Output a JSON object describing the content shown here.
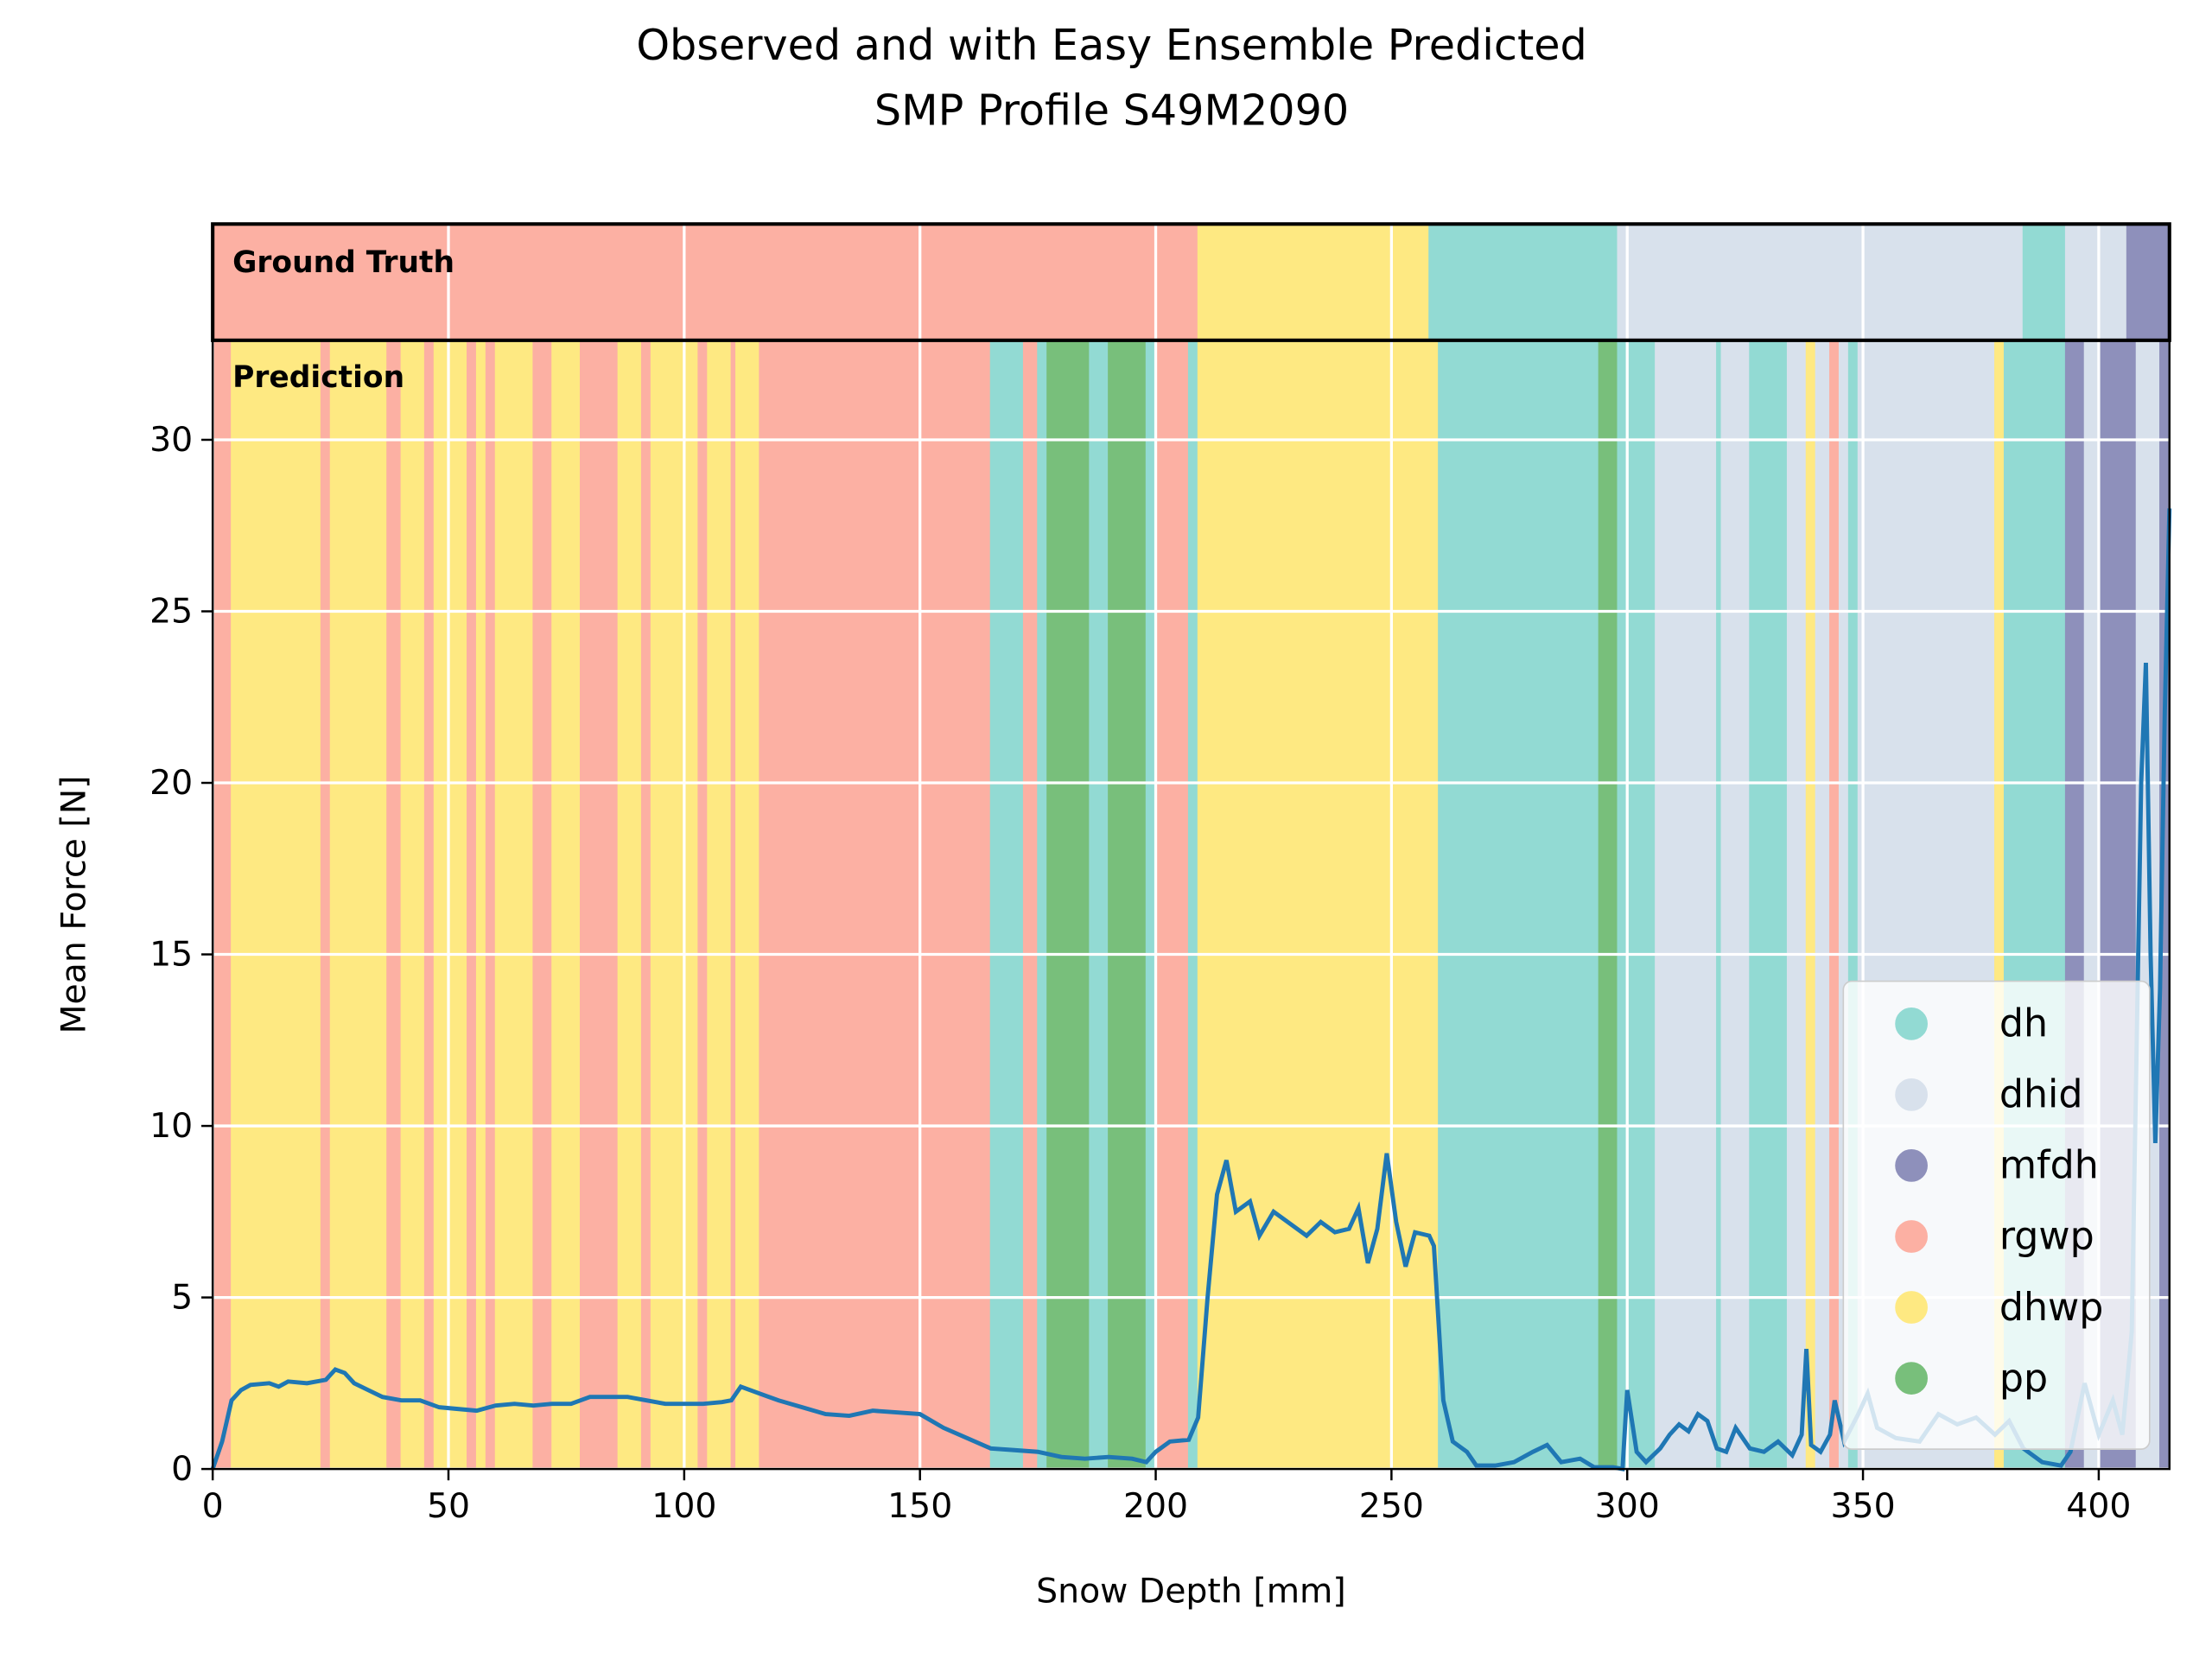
{
  "chart_data": {
    "type": "line",
    "title": [
      "Observed and with Easy Ensemble Predicted",
      "SMP Profile S49M2090"
    ],
    "x_label": "Snow Depth [mm]",
    "y_label": "Mean Force [N]",
    "annotations": [
      "Ground Truth",
      "Prediction"
    ],
    "xlim": [
      0,
      415
    ],
    "ylim": [
      0,
      32.9
    ],
    "xticks": [
      0,
      50,
      100,
      150,
      200,
      250,
      300,
      350,
      400
    ],
    "yticks": [
      0,
      5,
      10,
      15,
      20,
      25,
      30
    ],
    "grid": true,
    "legend": "lower right",
    "line_color": "#1f77b4",
    "classes": [
      {
        "name": "dh",
        "color": "#92dad3"
      },
      {
        "name": "dhid",
        "color": "#d8e1ec"
      },
      {
        "name": "mfdh",
        "color": "#8e90bb"
      },
      {
        "name": "rgwp",
        "color": "#fcb0a3"
      },
      {
        "name": "dhwp",
        "color": "#fee982"
      },
      {
        "name": "pp",
        "color": "#78bf7b"
      }
    ],
    "ground_truth": [
      {
        "start": 0,
        "end": 209,
        "class": "rgwp"
      },
      {
        "start": 209,
        "end": 258,
        "class": "dhwp"
      },
      {
        "start": 258,
        "end": 298,
        "class": "dh"
      },
      {
        "start": 298,
        "end": 384,
        "class": "dhid"
      },
      {
        "start": 384,
        "end": 393,
        "class": "dh"
      },
      {
        "start": 393,
        "end": 406,
        "class": "dhid"
      },
      {
        "start": 406,
        "end": 415,
        "class": "mfdh"
      }
    ],
    "prediction": [
      {
        "start": 0,
        "end": 4,
        "class": "rgwp"
      },
      {
        "start": 4,
        "end": 23,
        "class": "dhwp"
      },
      {
        "start": 23,
        "end": 25,
        "class": "rgwp"
      },
      {
        "start": 25,
        "end": 37,
        "class": "dhwp"
      },
      {
        "start": 37,
        "end": 40,
        "class": "rgwp"
      },
      {
        "start": 40,
        "end": 45,
        "class": "dhwp"
      },
      {
        "start": 45,
        "end": 47,
        "class": "rgwp"
      },
      {
        "start": 47,
        "end": 54,
        "class": "dhwp"
      },
      {
        "start": 54,
        "end": 56,
        "class": "rgwp"
      },
      {
        "start": 56,
        "end": 58,
        "class": "dhwp"
      },
      {
        "start": 58,
        "end": 60,
        "class": "rgwp"
      },
      {
        "start": 60,
        "end": 68,
        "class": "dhwp"
      },
      {
        "start": 68,
        "end": 72,
        "class": "rgwp"
      },
      {
        "start": 72,
        "end": 78,
        "class": "dhwp"
      },
      {
        "start": 78,
        "end": 86,
        "class": "rgwp"
      },
      {
        "start": 86,
        "end": 91,
        "class": "dhwp"
      },
      {
        "start": 91,
        "end": 93,
        "class": "rgwp"
      },
      {
        "start": 93,
        "end": 103,
        "class": "dhwp"
      },
      {
        "start": 103,
        "end": 105,
        "class": "rgwp"
      },
      {
        "start": 105,
        "end": 110,
        "class": "dhwp"
      },
      {
        "start": 110,
        "end": 111,
        "class": "rgwp"
      },
      {
        "start": 111,
        "end": 116,
        "class": "dhwp"
      },
      {
        "start": 116,
        "end": 165,
        "class": "rgwp"
      },
      {
        "start": 165,
        "end": 172,
        "class": "dh"
      },
      {
        "start": 172,
        "end": 175,
        "class": "rgwp"
      },
      {
        "start": 175,
        "end": 177,
        "class": "dh"
      },
      {
        "start": 177,
        "end": 186,
        "class": "pp"
      },
      {
        "start": 186,
        "end": 190,
        "class": "dh"
      },
      {
        "start": 190,
        "end": 198,
        "class": "pp"
      },
      {
        "start": 198,
        "end": 200,
        "class": "dh"
      },
      {
        "start": 200,
        "end": 207,
        "class": "rgwp"
      },
      {
        "start": 207,
        "end": 209,
        "class": "dh"
      },
      {
        "start": 209,
        "end": 260,
        "class": "dhwp"
      },
      {
        "start": 260,
        "end": 294,
        "class": "dh"
      },
      {
        "start": 294,
        "end": 298,
        "class": "pp"
      },
      {
        "start": 298,
        "end": 306,
        "class": "dh"
      },
      {
        "start": 306,
        "end": 319,
        "class": "dhid"
      },
      {
        "start": 319,
        "end": 320,
        "class": "dh"
      },
      {
        "start": 320,
        "end": 326,
        "class": "dhid"
      },
      {
        "start": 326,
        "end": 334,
        "class": "dh"
      },
      {
        "start": 334,
        "end": 338,
        "class": "dhid"
      },
      {
        "start": 338,
        "end": 340,
        "class": "dhwp"
      },
      {
        "start": 340,
        "end": 343,
        "class": "dhid"
      },
      {
        "start": 343,
        "end": 345,
        "class": "rgwp"
      },
      {
        "start": 345,
        "end": 347,
        "class": "dhid"
      },
      {
        "start": 347,
        "end": 349,
        "class": "dh"
      },
      {
        "start": 349,
        "end": 378,
        "class": "dhid"
      },
      {
        "start": 378,
        "end": 380,
        "class": "dhwp"
      },
      {
        "start": 380,
        "end": 393,
        "class": "dh"
      },
      {
        "start": 393,
        "end": 397,
        "class": "mfdh"
      },
      {
        "start": 397,
        "end": 400,
        "class": "dhid"
      },
      {
        "start": 400,
        "end": 408,
        "class": "mfdh"
      },
      {
        "start": 408,
        "end": 413,
        "class": "dhid"
      },
      {
        "start": 413,
        "end": 415,
        "class": "mfdh"
      }
    ],
    "x": [
      0,
      2,
      4,
      6,
      8,
      12,
      14,
      16,
      20,
      24,
      26,
      28,
      30,
      33,
      36,
      40,
      44,
      48,
      52,
      56,
      60,
      64,
      68,
      72,
      76,
      80,
      84,
      88,
      92,
      96,
      100,
      104,
      108,
      110,
      112,
      116,
      120,
      125,
      130,
      135,
      140,
      145,
      150,
      155,
      160,
      165,
      170,
      175,
      180,
      185,
      190,
      195,
      198,
      200,
      203,
      207,
      209,
      211,
      213,
      215,
      217,
      220,
      222,
      225,
      228,
      232,
      235,
      238,
      241,
      243,
      245,
      247,
      249,
      251,
      253,
      255,
      258,
      259,
      261,
      263,
      266,
      268,
      272,
      276,
      280,
      283,
      286,
      290,
      293,
      297,
      299,
      300,
      302,
      304,
      307,
      309,
      311,
      313,
      315,
      317,
      319,
      321,
      323,
      326,
      329,
      332,
      335,
      337,
      338,
      339,
      341,
      343,
      344,
      346,
      349,
      351,
      353,
      357,
      362,
      366,
      370,
      374,
      378,
      381,
      384,
      388,
      392,
      394,
      397,
      400,
      403,
      405,
      407,
      409,
      410,
      411,
      412,
      413,
      414,
      415
    ],
    "values": [
      0,
      0.8,
      2.0,
      2.3,
      2.45,
      2.5,
      2.4,
      2.55,
      2.5,
      2.6,
      2.9,
      2.8,
      2.5,
      2.3,
      2.1,
      2.0,
      2.0,
      1.8,
      1.75,
      1.7,
      1.85,
      1.9,
      1.85,
      1.9,
      1.9,
      2.1,
      2.1,
      2.1,
      2.0,
      1.9,
      1.9,
      1.9,
      1.95,
      2.0,
      2.4,
      2.2,
      2.0,
      1.8,
      1.6,
      1.55,
      1.7,
      1.65,
      1.6,
      1.2,
      0.9,
      0.6,
      0.55,
      0.5,
      0.35,
      0.3,
      0.35,
      0.3,
      0.2,
      0.5,
      0.8,
      0.85,
      1.5,
      5,
      8,
      9,
      7.5,
      7.8,
      6.8,
      7.5,
      7.2,
      6.8,
      7.2,
      6.9,
      7.0,
      7.6,
      6.0,
      7.0,
      9.2,
      7.2,
      5.9,
      6.9,
      6.8,
      6.5,
      2,
      0.8,
      0.5,
      0.1,
      0.1,
      0.2,
      0.5,
      0.7,
      0.2,
      0.3,
      0.05,
      0.05,
      0,
      2.3,
      0.5,
      0.2,
      0.6,
      1.0,
      1.3,
      1.1,
      1.6,
      1.4,
      0.6,
      0.5,
      1.2,
      0.6,
      0.5,
      0.8,
      0.4,
      1.0,
      3.5,
      0.7,
      0.5,
      1.0,
      2.0,
      0.8,
      1.6,
      2.2,
      1.2,
      0.9,
      0.8,
      1.6,
      1.3,
      1.5,
      1.0,
      1.4,
      0.6,
      0.2,
      0.1,
      0.5,
      2.5,
      1.0,
      2.0,
      1.0,
      4,
      20,
      23.5,
      15,
      9.5,
      14,
      22,
      28
    ]
  }
}
